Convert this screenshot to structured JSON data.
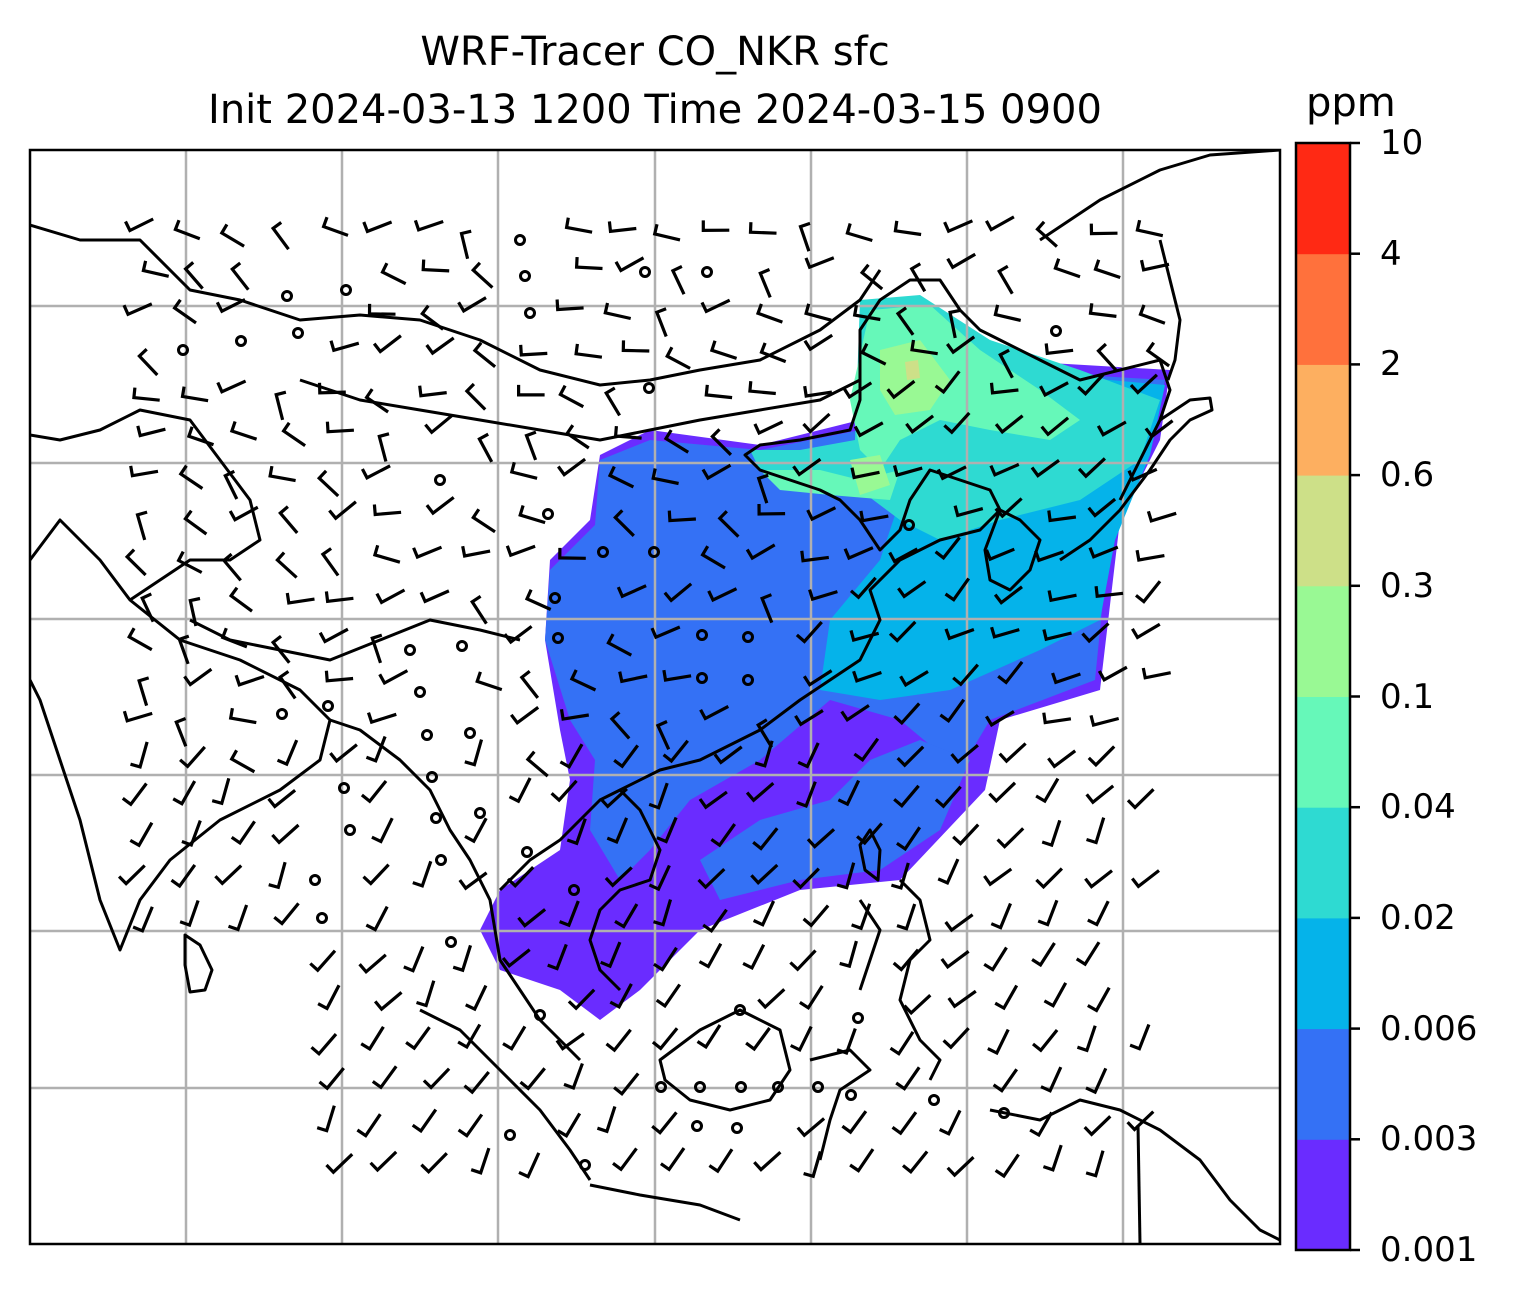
{
  "title": {
    "line1": "WRF-Tracer CO_NKR sfc",
    "line2": "Init 2024-03-13 1200 Time 2024-03-15 0900"
  },
  "colorbar": {
    "unit": "ppm",
    "levels": [
      "0.001",
      "0.003",
      "0.006",
      "0.02",
      "0.04",
      "0.1",
      "0.3",
      "0.6",
      "2",
      "4",
      "10"
    ],
    "colors": [
      "#6a2cff",
      "#3471f5",
      "#05b3ea",
      "#2edad2",
      "#66f8b9",
      "#99f994",
      "#cde088",
      "#fdaf60",
      "#ff713c",
      "#ff2914"
    ]
  },
  "map": {
    "coastline_color": "#000000",
    "gridline_color": "#b0b0b0",
    "tracer_field": "CO_NKR",
    "wind_symbol": "barbs"
  }
}
